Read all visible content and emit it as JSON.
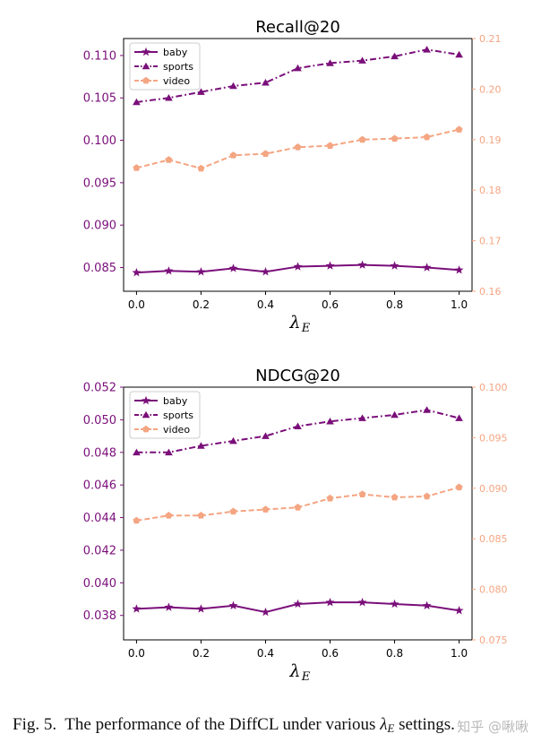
{
  "colors": {
    "baby": "#7a0f7a",
    "sports": "#7a0f7a",
    "video": "#f4a582",
    "left_axis": "#7a0f7a",
    "right_axis": "#f4a582"
  },
  "chart_data": [
    {
      "type": "line",
      "title": "Recall@20",
      "xlabel": "λ",
      "xlabel_sub": "E",
      "x": [
        0.0,
        0.1,
        0.2,
        0.3,
        0.4,
        0.5,
        0.6,
        0.7,
        0.8,
        0.9,
        1.0
      ],
      "x_ticks": [
        "0.0",
        "0.2",
        "0.4",
        "0.6",
        "0.8",
        "1.0"
      ],
      "xlim": [
        -0.04,
        1.04
      ],
      "ylim_left": [
        0.0822,
        0.112
      ],
      "ylim_right": [
        0.16,
        0.21
      ],
      "yticks_left": [
        "0.085",
        "0.090",
        "0.095",
        "0.100",
        "0.105",
        "0.110"
      ],
      "yticks_right": [
        "0.16",
        "0.17",
        "0.18",
        "0.19",
        "0.20",
        "0.21"
      ],
      "legend_position": "top-left",
      "series": [
        {
          "name": "baby",
          "axis": "left",
          "marker": "star",
          "style": "solid",
          "values": [
            0.0844,
            0.0846,
            0.0845,
            0.0849,
            0.0845,
            0.0851,
            0.0852,
            0.0853,
            0.0852,
            0.085,
            0.0847
          ]
        },
        {
          "name": "sports",
          "axis": "left",
          "marker": "triangle",
          "style": "dashdot",
          "values": [
            0.1045,
            0.105,
            0.1057,
            0.1064,
            0.1068,
            0.1085,
            0.1091,
            0.1094,
            0.1099,
            0.1107,
            0.1101
          ]
        },
        {
          "name": "video",
          "axis": "right",
          "marker": "pentagon",
          "style": "dashed",
          "values": [
            0.1844,
            0.186,
            0.1843,
            0.1869,
            0.1872,
            0.1885,
            0.1888,
            0.19,
            0.1902,
            0.1905,
            0.192
          ]
        }
      ]
    },
    {
      "type": "line",
      "title": "NDCG@20",
      "xlabel": "λ",
      "xlabel_sub": "E",
      "x": [
        0.0,
        0.1,
        0.2,
        0.3,
        0.4,
        0.5,
        0.6,
        0.7,
        0.8,
        0.9,
        1.0
      ],
      "x_ticks": [
        "0.0",
        "0.2",
        "0.4",
        "0.6",
        "0.8",
        "1.0"
      ],
      "xlim": [
        -0.04,
        1.04
      ],
      "ylim_left": [
        0.0365,
        0.052
      ],
      "ylim_right": [
        0.075,
        0.1
      ],
      "yticks_left": [
        "0.038",
        "0.040",
        "0.042",
        "0.044",
        "0.046",
        "0.048",
        "0.050",
        "0.052"
      ],
      "yticks_right": [
        "0.075",
        "0.080",
        "0.085",
        "0.090",
        "0.095",
        "0.100"
      ],
      "legend_position": "top-left",
      "series": [
        {
          "name": "baby",
          "axis": "left",
          "marker": "star",
          "style": "solid",
          "values": [
            0.0384,
            0.0385,
            0.0384,
            0.0386,
            0.0382,
            0.0387,
            0.0388,
            0.0388,
            0.0387,
            0.0386,
            0.0383
          ]
        },
        {
          "name": "sports",
          "axis": "left",
          "marker": "triangle",
          "style": "dashdot",
          "values": [
            0.048,
            0.048,
            0.0484,
            0.0487,
            0.049,
            0.0496,
            0.0499,
            0.0501,
            0.0503,
            0.0506,
            0.0501
          ]
        },
        {
          "name": "video",
          "axis": "right",
          "marker": "pentagon",
          "style": "dashed",
          "values": [
            0.0868,
            0.0873,
            0.0873,
            0.0877,
            0.0879,
            0.0881,
            0.089,
            0.0894,
            0.0891,
            0.0892,
            0.0901
          ]
        }
      ]
    }
  ],
  "caption": {
    "prefix": "Fig. 5.",
    "text_before": "The performance of the DiffCL under various",
    "symbol": "λ",
    "symbol_sub": "E",
    "text_after": "settings."
  },
  "watermark": "知乎 @啾啾"
}
